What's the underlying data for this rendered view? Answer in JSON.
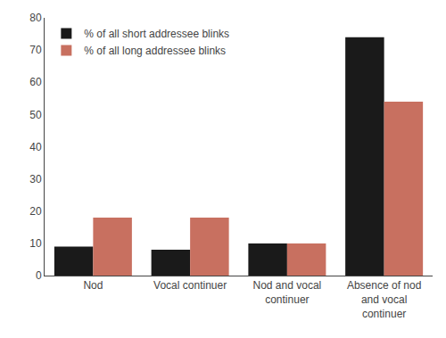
{
  "chart_data": {
    "type": "bar",
    "categories": [
      "Nod",
      "Vocal continuer",
      "Nod and vocal\ncontinuer",
      "Absence of nod\nand vocal\ncontinuer"
    ],
    "series": [
      {
        "name": "% of all short addressee blinks",
        "color": "#1a1a1a",
        "values": [
          9,
          8,
          10,
          74
        ]
      },
      {
        "name": "% of all long addressee blinks",
        "color": "#c87060",
        "values": [
          18,
          18,
          10,
          54
        ]
      }
    ],
    "ylim": [
      0,
      80
    ],
    "yticks": [
      0,
      10,
      20,
      30,
      40,
      50,
      60,
      70,
      80
    ],
    "grid": false,
    "legend": "upper left"
  }
}
